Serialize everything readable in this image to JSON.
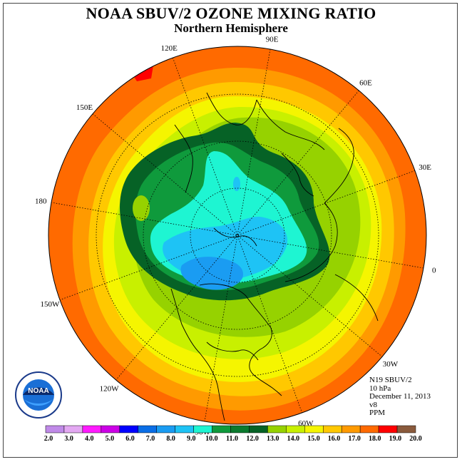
{
  "title": "NOAA SBUV/2 OZONE MIXING RATIO",
  "subtitle": "Northern Hemisphere",
  "longitude_labels": [
    {
      "text": "90E",
      "lon": 90
    },
    {
      "text": "60E",
      "lon": 60
    },
    {
      "text": "30E",
      "lon": 30
    },
    {
      "text": "0",
      "lon": 0
    },
    {
      "text": "30W",
      "lon": -30
    },
    {
      "text": "60W",
      "lon": -60
    },
    {
      "text": "90W",
      "lon": -90
    },
    {
      "text": "120W",
      "lon": -120
    },
    {
      "text": "150W",
      "lon": -150
    },
    {
      "text": "180",
      "lon": 180
    },
    {
      "text": "150E",
      "lon": 150
    },
    {
      "text": "120E",
      "lon": 120
    }
  ],
  "info": {
    "satellite": "N19 SBUV/2",
    "level": "10 hPa",
    "date": "December 11, 2013",
    "version": "v8",
    "units": "PPM"
  },
  "logo_text": "NOAA",
  "colorbar": {
    "ticks": [
      "2.0",
      "3.0",
      "4.0",
      "5.0",
      "6.0",
      "7.0",
      "8.0",
      "9.0",
      "10.0",
      "11.0",
      "12.0",
      "13.0",
      "14.0",
      "15.0",
      "16.0",
      "17.0",
      "18.0",
      "19.0",
      "20.0"
    ],
    "colors": [
      "#c08ae8",
      "#e3a8f2",
      "#ff1aff",
      "#cc00e6",
      "#0000ff",
      "#0a6ee6",
      "#1a9cf2",
      "#1ec3f5",
      "#1ef5d2",
      "#0f9a3c",
      "#0b7a2e",
      "#066226",
      "#96d200",
      "#c8f000",
      "#f5f500",
      "#ffc800",
      "#ff9a00",
      "#ff6a00",
      "#ff0000",
      "#8a5a3c"
    ]
  },
  "map_colors": {
    "background_orange": "#ff6a00",
    "ring_17": "#ff9a00",
    "ring_16": "#ffc800",
    "ring_15": "#f5f500",
    "ring_14": "#c8f000",
    "ring_13": "#96d200",
    "dark_green_12": "#066226",
    "green_11": "#0f9a3c",
    "cyan_10": "#1ef5d2",
    "cyan_9": "#1ec3f5",
    "blue_8": "#1a9cf2",
    "red_18": "#ff0000"
  }
}
